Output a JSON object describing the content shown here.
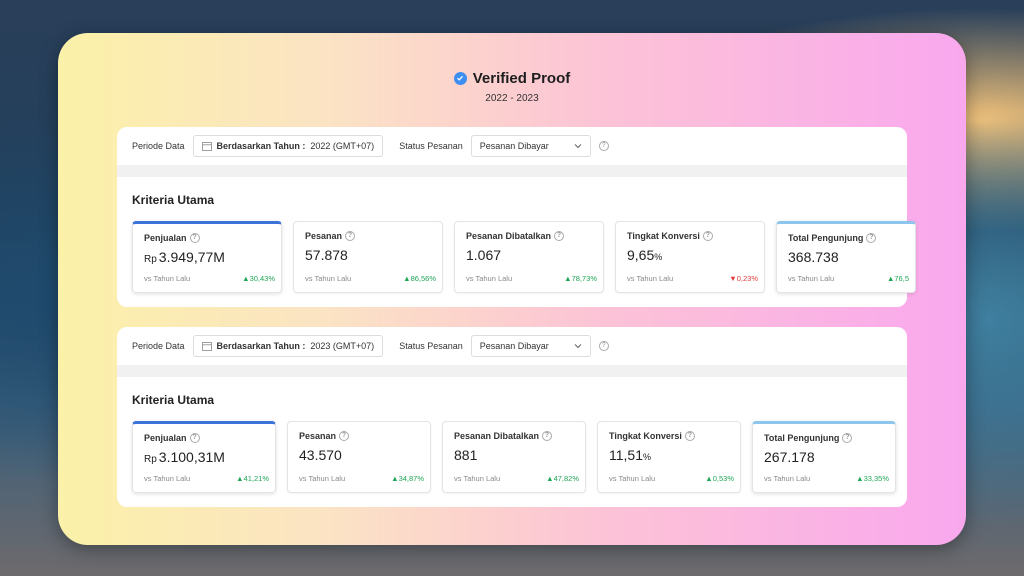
{
  "header": {
    "title": "Verified Proof",
    "subtitle": "2022 - 2023"
  },
  "colors": {
    "accent": "#3b73d9",
    "up": "#1fa656",
    "down": "#e23b3b"
  },
  "panels": [
    {
      "filter": {
        "periode_label": "Periode Data",
        "mode_label": "Berdasarkan Tahun :",
        "mode_value": "2022 (GMT+07)",
        "status_label": "Status Pesanan",
        "status_value": "Pesanan Dibayar"
      },
      "section_title": "Kriteria Utama",
      "cards": [
        {
          "label": "Penjualan",
          "prefix": "Rp",
          "value": "3.949,77M",
          "suffix": "",
          "vs": "vs Tahun Lalu",
          "delta": "30,43%",
          "trend": "up"
        },
        {
          "label": "Pesanan",
          "prefix": "",
          "value": "57.878",
          "suffix": "",
          "vs": "vs Tahun Lalu",
          "delta": "86,56%",
          "trend": "up"
        },
        {
          "label": "Pesanan Dibatalkan",
          "prefix": "",
          "value": "1.067",
          "suffix": "",
          "vs": "vs Tahun Lalu",
          "delta": "78,73%",
          "trend": "up"
        },
        {
          "label": "Tingkat Konversi",
          "prefix": "",
          "value": "9,65",
          "suffix": "%",
          "vs": "vs Tahun Lalu",
          "delta": "0,23%",
          "trend": "down"
        },
        {
          "label": "Total Pengunjung",
          "prefix": "",
          "value": "368.738",
          "suffix": "",
          "vs": "vs Tahun Lalu",
          "delta": "76,5",
          "trend": "up"
        }
      ]
    },
    {
      "filter": {
        "periode_label": "Periode Data",
        "mode_label": "Berdasarkan Tahun :",
        "mode_value": "2023 (GMT+07)",
        "status_label": "Status Pesanan",
        "status_value": "Pesanan Dibayar"
      },
      "section_title": "Kriteria Utama",
      "cards": [
        {
          "label": "Penjualan",
          "prefix": "Rp",
          "value": "3.100,31M",
          "suffix": "",
          "vs": "vs Tahun Lalu",
          "delta": "41,21%",
          "trend": "up"
        },
        {
          "label": "Pesanan",
          "prefix": "",
          "value": "43.570",
          "suffix": "",
          "vs": "vs Tahun Lalu",
          "delta": "34,87%",
          "trend": "up"
        },
        {
          "label": "Pesanan Dibatalkan",
          "prefix": "",
          "value": "881",
          "suffix": "",
          "vs": "vs Tahun Lalu",
          "delta": "47,82%",
          "trend": "up"
        },
        {
          "label": "Tingkat Konversi",
          "prefix": "",
          "value": "11,51",
          "suffix": "%",
          "vs": "vs Tahun Lalu",
          "delta": "0,53%",
          "trend": "up"
        },
        {
          "label": "Total Pengunjung",
          "prefix": "",
          "value": "267.178",
          "suffix": "",
          "vs": "vs Tahun Lalu",
          "delta": "33,35%",
          "trend": "up"
        }
      ]
    }
  ]
}
